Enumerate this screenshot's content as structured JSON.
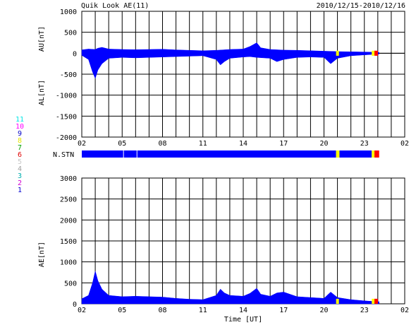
{
  "header": {
    "title": "Quik Look AE(11)",
    "date_range": "2010/12/15-2010/12/16"
  },
  "colors": {
    "data_fill": "#0000ff",
    "gap_yellow": "#ffff00",
    "gap_red": "#ff0000",
    "grid": "#000000",
    "background": "#ffffff"
  },
  "station_legend": [
    {
      "label": "11",
      "color": "#00e5e5"
    },
    {
      "label": "10",
      "color": "#ff00ff"
    },
    {
      "label": "9",
      "color": "#0000c8"
    },
    {
      "label": "8",
      "color": "#e5e500"
    },
    {
      "label": "7",
      "color": "#00a000"
    },
    {
      "label": "6",
      "color": "#e00000"
    },
    {
      "label": "5",
      "color": "#c8c8c8"
    },
    {
      "label": "4",
      "color": "#a0a0a0"
    },
    {
      "label": "3",
      "color": "#00b0b0"
    },
    {
      "label": "2",
      "color": "#d000d0"
    },
    {
      "label": "1",
      "color": "#0000d0"
    }
  ],
  "chart_data": [
    {
      "type": "area",
      "panel": "AU/AL",
      "ylabel_top": "AU[nT]",
      "ylabel_bottom": "AL[nT]",
      "ylim": [
        -2000,
        1000
      ],
      "yticks": [
        1000,
        500,
        0,
        -500,
        -1000,
        -1500,
        -2000
      ],
      "xlim": [
        2,
        26
      ],
      "xticks": [
        "02",
        "05",
        "08",
        "11",
        "14",
        "17",
        "20",
        "23",
        "02"
      ],
      "au_series": {
        "name": "AU",
        "x": [
          2.0,
          2.5,
          3.0,
          3.2,
          3.5,
          4.0,
          5.0,
          6.0,
          7.0,
          8.0,
          9.0,
          10.0,
          11.0,
          12.0,
          12.5,
          13.0,
          14.0,
          14.5,
          15.0,
          15.3,
          16.0,
          17.0,
          18.0,
          19.0,
          20.0,
          21.0,
          22.0,
          23.0,
          23.5,
          24.1
        ],
        "values": [
          80,
          100,
          90,
          120,
          140,
          100,
          90,
          85,
          90,
          95,
          80,
          70,
          60,
          70,
          80,
          90,
          100,
          160,
          250,
          130,
          90,
          75,
          70,
          60,
          50,
          40,
          35,
          30,
          25,
          20
        ]
      },
      "al_series": {
        "name": "AL",
        "x": [
          2.0,
          2.5,
          2.8,
          3.0,
          3.2,
          3.5,
          4.0,
          5.0,
          6.0,
          7.0,
          8.0,
          9.0,
          10.0,
          11.0,
          12.0,
          12.3,
          12.6,
          13.0,
          14.0,
          14.5,
          15.0,
          16.0,
          16.5,
          17.0,
          18.0,
          19.0,
          20.0,
          20.5,
          21.0,
          22.0,
          23.0,
          23.5,
          24.1
        ],
        "values": [
          -50,
          -150,
          -450,
          -600,
          -400,
          -250,
          -120,
          -100,
          -110,
          -100,
          -90,
          -80,
          -70,
          -60,
          -150,
          -280,
          -200,
          -120,
          -90,
          -80,
          -100,
          -120,
          -200,
          -150,
          -100,
          -90,
          -100,
          -250,
          -120,
          -60,
          -40,
          -30,
          -20
        ]
      },
      "data_end": 24.1
    },
    {
      "type": "table",
      "panel": "station-count",
      "label": "N.STN",
      "segments": [
        {
          "from": 2.0,
          "to": 20.9,
          "color": "#0000ff"
        },
        {
          "from": 20.9,
          "to": 21.15,
          "color": "#ffff00"
        },
        {
          "from": 21.15,
          "to": 23.55,
          "color": "#0000ff"
        },
        {
          "from": 23.55,
          "to": 23.75,
          "color": "#ffff00"
        },
        {
          "from": 23.75,
          "to": 24.1,
          "color": "#ff0000"
        }
      ]
    },
    {
      "type": "area",
      "panel": "AE",
      "ylabel": "AE[nT]",
      "xlabel": "Time [UT]",
      "ylim": [
        0,
        3000
      ],
      "yticks": [
        3000,
        2500,
        2000,
        1500,
        1000,
        500,
        0
      ],
      "xlim": [
        2,
        26
      ],
      "xticks": [
        "02",
        "05",
        "08",
        "11",
        "14",
        "17",
        "20",
        "23",
        "02"
      ],
      "ae_series": {
        "name": "AE",
        "x": [
          2.0,
          2.5,
          2.8,
          3.0,
          3.2,
          3.5,
          4.0,
          5.0,
          6.0,
          7.0,
          8.0,
          9.0,
          10.0,
          11.0,
          12.0,
          12.3,
          12.6,
          13.0,
          14.0,
          14.5,
          15.0,
          15.3,
          16.0,
          16.5,
          17.0,
          18.0,
          19.0,
          20.0,
          20.5,
          21.0,
          22.0,
          23.0,
          23.5,
          24.1
        ],
        "values": [
          120,
          200,
          500,
          780,
          550,
          350,
          200,
          170,
          180,
          170,
          160,
          130,
          110,
          100,
          200,
          350,
          260,
          200,
          180,
          250,
          370,
          230,
          180,
          260,
          280,
          170,
          150,
          130,
          280,
          150,
          100,
          70,
          60,
          50
        ]
      },
      "data_end": 24.1
    }
  ]
}
